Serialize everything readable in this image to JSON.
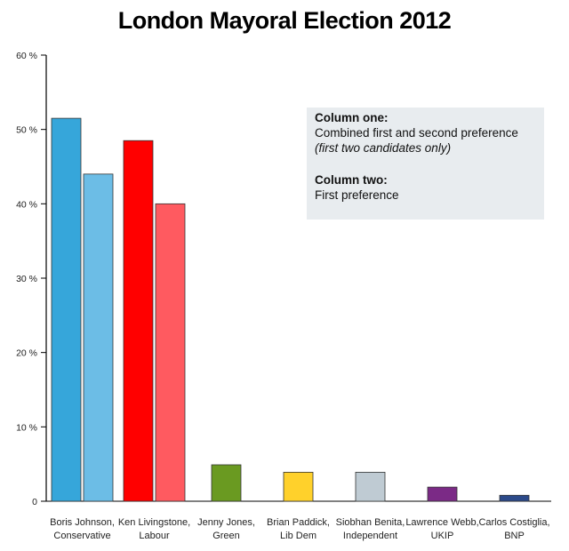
{
  "chart_data": {
    "type": "bar",
    "title": "London Mayoral Election 2012",
    "ylim": [
      0,
      60
    ],
    "yticks": [
      "0",
      "10 %",
      "20 %",
      "30 %",
      "40 %",
      "50 %",
      "60 %"
    ],
    "grid": false,
    "legend": {
      "position": "top-right",
      "column_one_heading": "Column one:",
      "column_one_desc": "Combined first and second preference",
      "column_one_note": "(first two candidates only)",
      "column_two_heading": "Column two:",
      "column_two_desc": "First preference"
    },
    "candidates": [
      {
        "name": "Boris Johnson,",
        "party": "Conservative",
        "combined": 51.5,
        "first": 44.0,
        "color_combined": "#36a6da",
        "color_first": "#6cbde6"
      },
      {
        "name": "Ken Livingstone,",
        "party": "Labour",
        "combined": 48.5,
        "first": 40.0,
        "color_combined": "#ff0000",
        "color_first": "#ff5a60"
      },
      {
        "name": "Jenny Jones,",
        "party": "Green",
        "combined": null,
        "first": 4.9,
        "color_first": "#6a9a21"
      },
      {
        "name": "Brian Paddick,",
        "party": "Lib Dem",
        "combined": null,
        "first": 3.9,
        "color_first": "#ffd12b"
      },
      {
        "name": "Siobhan Benita,",
        "party": "Independent",
        "combined": null,
        "first": 3.9,
        "color_first": "#bfcbd3"
      },
      {
        "name": "Lawrence Webb,",
        "party": "UKIP",
        "combined": null,
        "first": 1.9,
        "color_first": "#7b2a86"
      },
      {
        "name": "Carlos Costiglia,",
        "party": "BNP",
        "combined": null,
        "first": 0.8,
        "color_first": "#2c4a8a"
      }
    ]
  }
}
